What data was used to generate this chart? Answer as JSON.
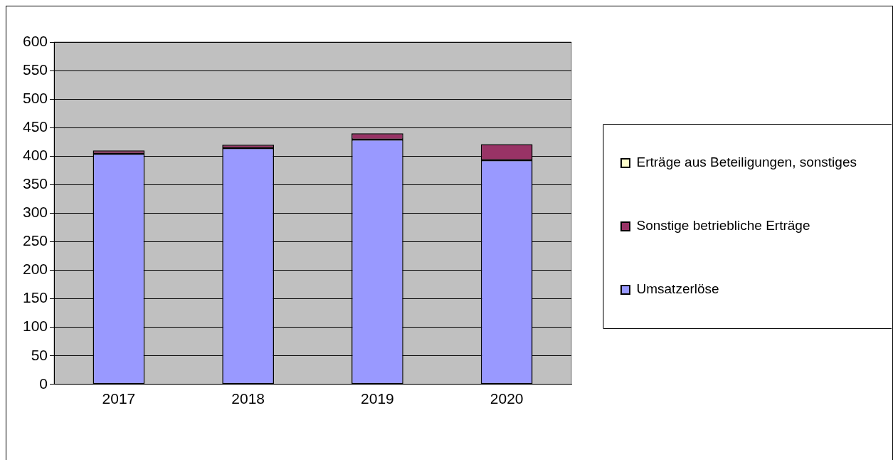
{
  "chart_data": {
    "type": "bar",
    "categories": [
      "2017",
      "2018",
      "2019",
      "2020"
    ],
    "stacked": true,
    "series": [
      {
        "name": "Umsatzerlöse",
        "color": "#9999ff",
        "values": [
          404,
          414,
          429,
          393
        ]
      },
      {
        "name": "Sonstige betriebliche Erträge",
        "color": "#993366",
        "values": [
          6,
          6,
          11,
          28
        ]
      },
      {
        "name": "Erträge aus Beteiligungen, sonstiges",
        "color": "#ffffcc",
        "values": [
          0,
          0,
          0,
          0
        ]
      }
    ],
    "ylim": [
      0,
      600
    ],
    "yticks": [
      0,
      50,
      100,
      150,
      200,
      250,
      300,
      350,
      400,
      450,
      500,
      550,
      600
    ],
    "grid": "y",
    "legend": "right"
  }
}
